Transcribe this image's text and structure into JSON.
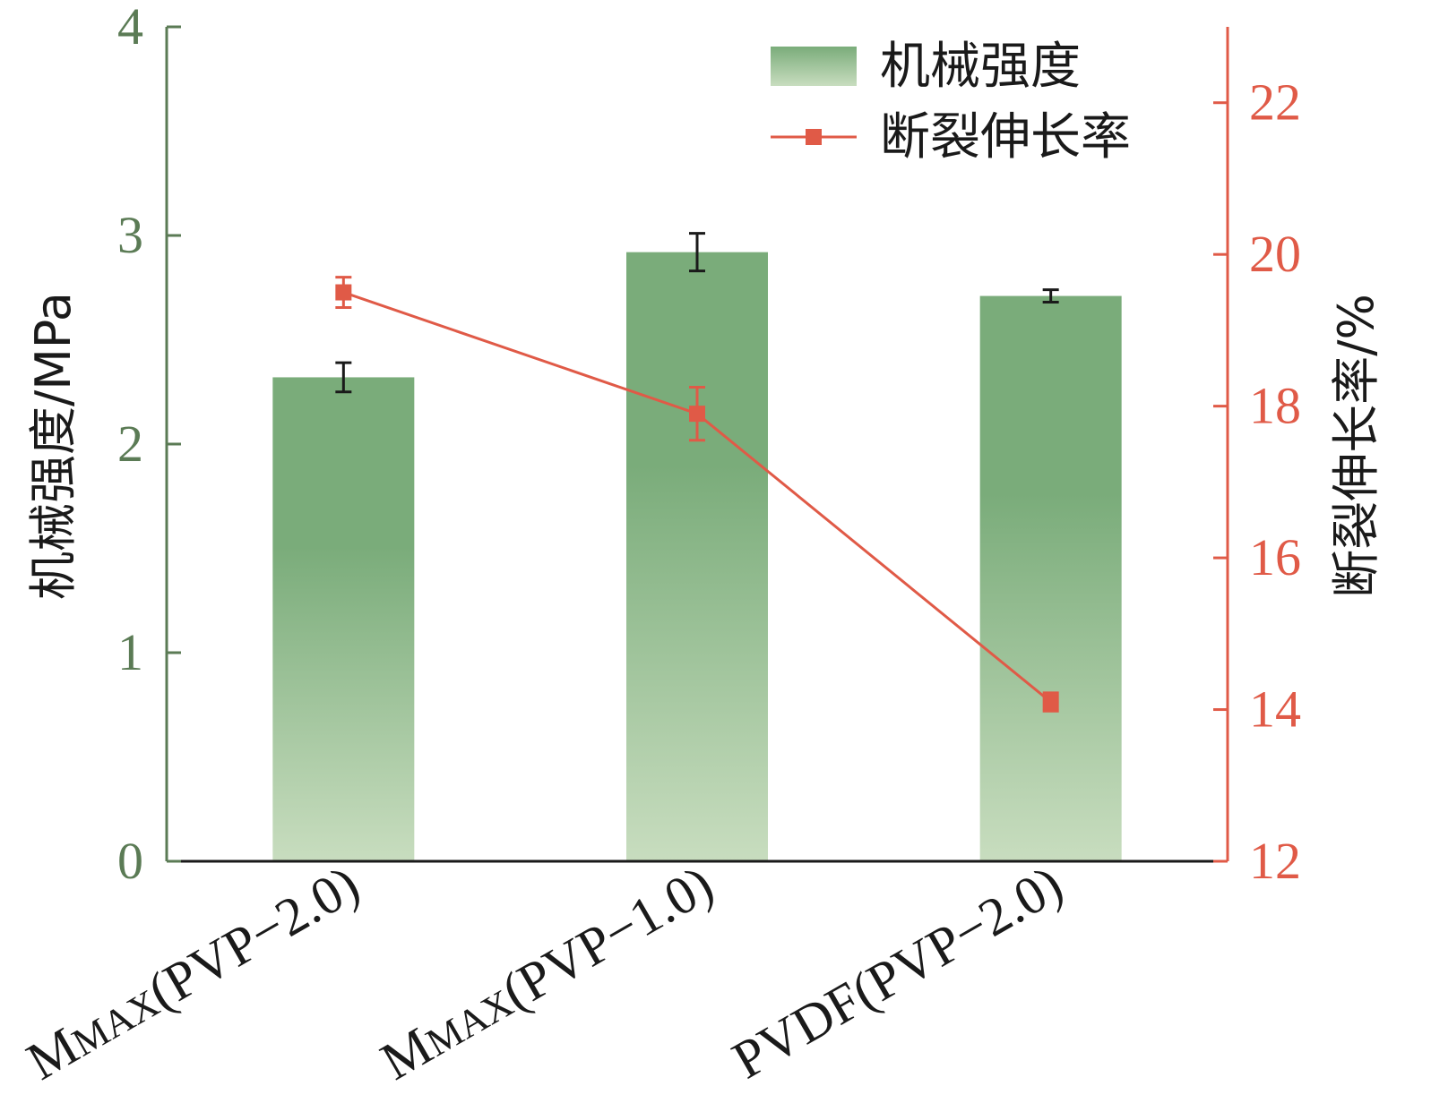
{
  "chart_data": {
    "type": "bar",
    "categories": [
      {
        "main": "M",
        "sub": "MAX",
        "rest": "(PVP−2.0)"
      },
      {
        "main": "M",
        "sub": "MAX",
        "rest": "(PVP−1.0)"
      },
      {
        "main": "PVDF(PVP−2.0)",
        "sub": "",
        "rest": ""
      }
    ],
    "bar_series": {
      "name": "机械强度",
      "values": [
        2.32,
        2.92,
        2.71
      ],
      "errors": [
        0.07,
        0.09,
        0.03
      ],
      "color_top": "#7aac7a",
      "color_bottom": "#c8ddbf"
    },
    "line_series": {
      "name": "断裂伸长率",
      "values": [
        19.5,
        17.9,
        14.1
      ],
      "errors": [
        0.2,
        0.35,
        0.12
      ],
      "color": "#e05a47"
    },
    "left_axis": {
      "label": "机械强度/MPa",
      "ylim": [
        0,
        4
      ],
      "ticks": [
        "0",
        "1",
        "2",
        "3",
        "4"
      ],
      "color": "#5b7b55"
    },
    "right_axis": {
      "label": "断裂伸长率/%",
      "ylim": [
        12,
        23
      ],
      "ticks": [
        "12",
        "14",
        "16",
        "18",
        "20",
        "22"
      ],
      "color": "#e05a47"
    },
    "legend_position": "top-right",
    "grid": false
  }
}
